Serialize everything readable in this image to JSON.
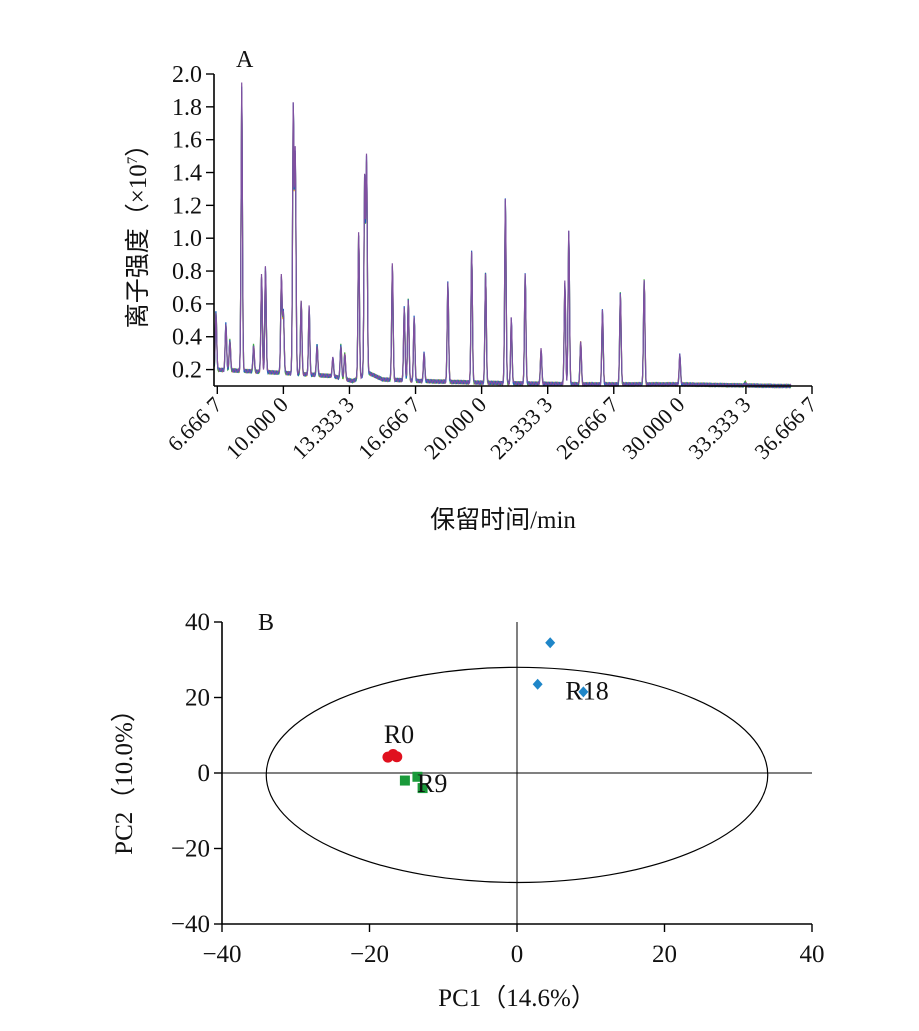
{
  "chart_data": [
    {
      "panel": "A",
      "type": "line",
      "ylabel_main": "离子强度（×10",
      "ylabel_sup": "7",
      "ylabel_end": "）",
      "xlabel": "保留时间/min",
      "xlim": [
        6.5,
        36.6667
      ],
      "ylim": [
        0.1,
        2.0
      ],
      "y_ticks": [
        "0.2",
        "0.4",
        "0.6",
        "0.8",
        "1.0",
        "1.2",
        "1.4",
        "1.6",
        "1.8",
        "2.0"
      ],
      "x_tick_values": [
        6.6667,
        10.0,
        13.3333,
        16.6667,
        20.0,
        23.3333,
        26.6667,
        30.0,
        33.3333,
        36.6667
      ],
      "x_tick_labels": [
        "6.666 7",
        "10.000 0",
        "13.333 3",
        "16.666 7",
        "20.000 0",
        "23.333 3",
        "26.666 7",
        "30.000 0",
        "33.333 3",
        "36.666 7"
      ],
      "series_colors": [
        "#f0a030",
        "#40b040",
        "#2060c0",
        "#8050a0"
      ],
      "baseline": [
        [
          6.5,
          0.2
        ],
        [
          10,
          0.18
        ],
        [
          12.5,
          0.16
        ],
        [
          13.5,
          0.13
        ],
        [
          14.3,
          0.18
        ],
        [
          15,
          0.14
        ],
        [
          17,
          0.13
        ],
        [
          20,
          0.12
        ],
        [
          25,
          0.11
        ],
        [
          30,
          0.11
        ],
        [
          35,
          0.1
        ],
        [
          35.6,
          0.1
        ]
      ],
      "peaks": [
        [
          6.6,
          0.55
        ],
        [
          7.1,
          0.48
        ],
        [
          7.3,
          0.38
        ],
        [
          7.9,
          1.93
        ],
        [
          8.5,
          0.35
        ],
        [
          8.9,
          0.77
        ],
        [
          9.1,
          0.82
        ],
        [
          9.9,
          0.77
        ],
        [
          10.0,
          0.55
        ],
        [
          10.5,
          1.81
        ],
        [
          10.6,
          1.5
        ],
        [
          10.9,
          0.62
        ],
        [
          11.3,
          0.58
        ],
        [
          11.7,
          0.35
        ],
        [
          12.5,
          0.27
        ],
        [
          12.9,
          0.35
        ],
        [
          13.1,
          0.3
        ],
        [
          13.8,
          1.03
        ],
        [
          14.1,
          1.38
        ],
        [
          14.2,
          1.47
        ],
        [
          15.5,
          0.84
        ],
        [
          16.1,
          0.58
        ],
        [
          16.3,
          0.63
        ],
        [
          16.6,
          0.52
        ],
        [
          17.1,
          0.3
        ],
        [
          18.3,
          0.73
        ],
        [
          19.5,
          0.92
        ],
        [
          20.2,
          0.79
        ],
        [
          21.2,
          1.24
        ],
        [
          21.5,
          0.51
        ],
        [
          22.2,
          0.78
        ],
        [
          23.0,
          0.32
        ],
        [
          24.2,
          0.73
        ],
        [
          24.4,
          1.04
        ],
        [
          25.0,
          0.37
        ],
        [
          26.1,
          0.56
        ],
        [
          27.0,
          0.67
        ],
        [
          28.2,
          0.75
        ],
        [
          30.0,
          0.29
        ],
        [
          33.3,
          0.12
        ]
      ]
    },
    {
      "panel": "B",
      "type": "scatter",
      "xlabel": "PC1（14.6%）",
      "ylabel": "PC2（10.0%）",
      "xlim": [
        -40,
        40
      ],
      "ylim": [
        -40,
        40
      ],
      "x_ticks": [
        "−40",
        "−20",
        "0",
        "20",
        "40"
      ],
      "y_ticks": [
        "−40",
        "−20",
        "0",
        "20",
        "40"
      ],
      "ellipse": {
        "cx": 0,
        "cy": -0.5,
        "rx": 34,
        "ry": 28.5
      },
      "series": [
        {
          "name": "R0",
          "marker": "circle",
          "color": "#e0101e",
          "label_at": [
            -16,
            8
          ],
          "points": [
            [
              -17.5,
              4.2
            ],
            [
              -16.8,
              4.9
            ],
            [
              -16.3,
              4.3
            ]
          ]
        },
        {
          "name": "R9",
          "marker": "square",
          "color": "#1a9a3a",
          "label_at": [
            -11.5,
            -5
          ],
          "points": [
            [
              -15.2,
              -2
            ],
            [
              -13.5,
              -1
            ],
            [
              -12.8,
              -4
            ]
          ]
        },
        {
          "name": "R18",
          "marker": "diamond",
          "color": "#1f86c8",
          "label_at": [
            9.5,
            19.5
          ],
          "points": [
            [
              4.5,
              34.5
            ],
            [
              2.8,
              23.5
            ],
            [
              9,
              21.5
            ]
          ]
        }
      ]
    }
  ]
}
